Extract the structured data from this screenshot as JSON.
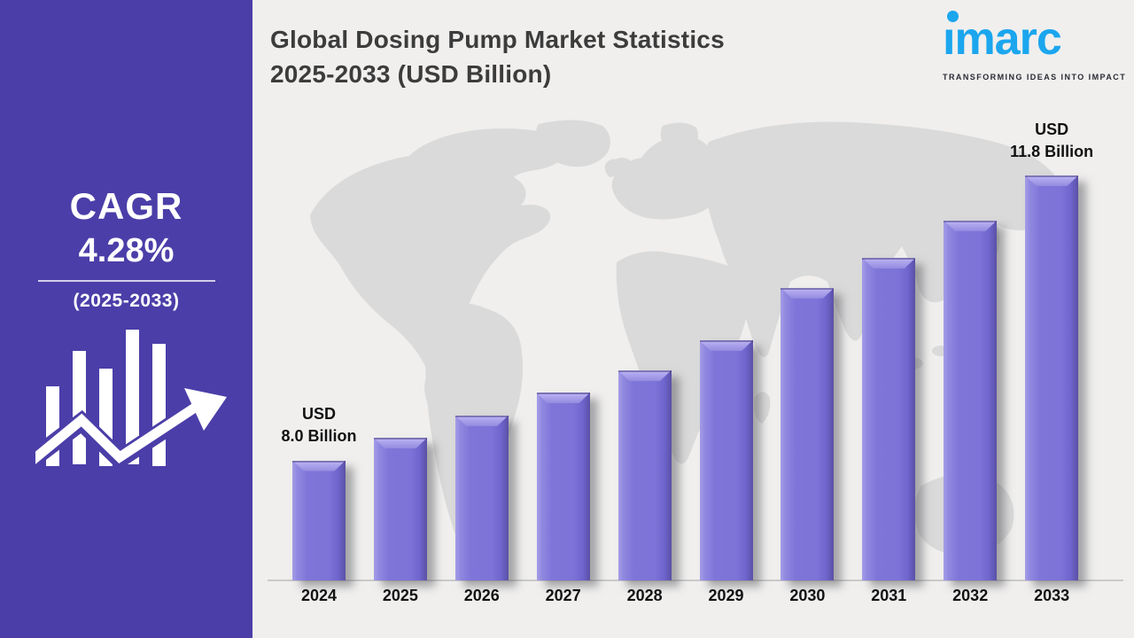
{
  "page": {
    "background": "#f0efee"
  },
  "sidebar": {
    "background": "#4b3ea8",
    "cagr_label": "CAGR",
    "cagr_value": "4.28%",
    "cagr_value_color": "#4cc0f4",
    "period": "(2025-2033)",
    "growth_icon": "bar-chart-with-upward-arrow"
  },
  "header": {
    "title_line1": "Global Dosing Pump Market Statistics",
    "title_line2": "2025-2033 (USD Billion)"
  },
  "logo": {
    "brand": "imarc",
    "tagline": "TRANSFORMING IDEAS INTO IMPACT",
    "brand_color": "#1ba6ee"
  },
  "chart_data": {
    "type": "bar",
    "title": "Global Dosing Pump Market Statistics 2025-2033 (USD Billion)",
    "unit": "USD Billion",
    "categories": [
      "2024",
      "2025",
      "2026",
      "2027",
      "2028",
      "2029",
      "2030",
      "2031",
      "2032",
      "2033"
    ],
    "values": [
      8.0,
      8.3,
      8.6,
      8.9,
      9.2,
      9.6,
      10.3,
      10.7,
      11.2,
      11.8
    ],
    "values_note": "only 2024 (8.0) and 2033 (11.8) are labeled; intermediate values estimated from bar heights",
    "annotations": [
      {
        "category": "2024",
        "lines": [
          "USD",
          "8.0 Billion"
        ]
      },
      {
        "category": "2033",
        "lines": [
          "USD",
          "11.8 Billion"
        ]
      }
    ],
    "bar_color": "#7d73d8",
    "xlabel": "",
    "ylabel": "",
    "ylim": [
      6.4,
      12.0
    ],
    "grid": false,
    "legend": false,
    "background_decoration": "faded world map"
  }
}
